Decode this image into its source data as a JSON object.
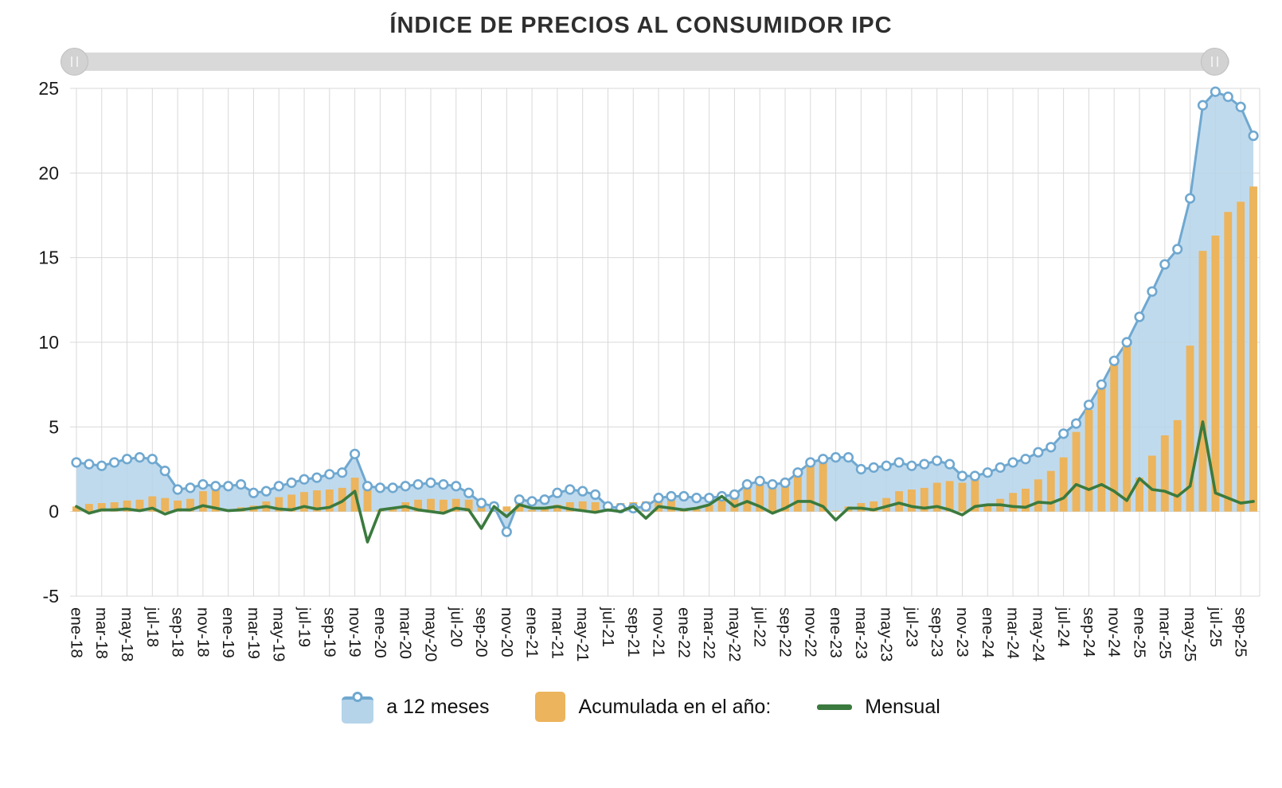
{
  "title": "ÍNDICE DE PRECIOS AL CONSUMIDOR IPC",
  "legend": {
    "series1": "a 12 meses",
    "series2": "Acumulada en el año:",
    "series3": "Mensual"
  },
  "colors": {
    "area_fill": "#b5d4ea",
    "area_stroke": "#6fa8d0",
    "bullet_fill": "#ffffff",
    "bar": "#ecb45c",
    "line": "#3b7a3e",
    "grid": "#d9d9d9",
    "axis_text": "#1a1a1a",
    "scrollbar": "#d9d9d9"
  },
  "chart_data": {
    "type": "mixed",
    "title": "ÍNDICE DE PRECIOS AL CONSUMIDOR IPC",
    "ylim": [
      -5,
      25
    ],
    "yticks": [
      -5,
      0,
      5,
      10,
      15,
      20,
      25
    ],
    "grid": true,
    "legend_position": "bottom",
    "x_label_rotation": 90,
    "x_label_step": 2,
    "x": [
      "ene-18",
      "feb-18",
      "mar-18",
      "abr-18",
      "may-18",
      "jun-18",
      "jul-18",
      "ago-18",
      "sep-18",
      "oct-18",
      "nov-18",
      "dic-18",
      "ene-19",
      "feb-19",
      "mar-19",
      "abr-19",
      "may-19",
      "jun-19",
      "jul-19",
      "ago-19",
      "sep-19",
      "oct-19",
      "nov-19",
      "dic-19",
      "ene-20",
      "feb-20",
      "mar-20",
      "abr-20",
      "may-20",
      "jun-20",
      "jul-20",
      "ago-20",
      "sep-20",
      "oct-20",
      "nov-20",
      "dic-20",
      "ene-21",
      "feb-21",
      "mar-21",
      "abr-21",
      "may-21",
      "jun-21",
      "jul-21",
      "ago-21",
      "sep-21",
      "oct-21",
      "nov-21",
      "dic-21",
      "ene-22",
      "feb-22",
      "mar-22",
      "abr-22",
      "may-22",
      "jun-22",
      "jul-22",
      "ago-22",
      "sep-22",
      "oct-22",
      "nov-22",
      "dic-22",
      "ene-23",
      "feb-23",
      "mar-23",
      "abr-23",
      "may-23",
      "jun-23",
      "jul-23",
      "ago-23",
      "sep-23",
      "oct-23",
      "nov-23",
      "dic-23",
      "ene-24",
      "feb-24",
      "mar-24",
      "abr-24",
      "may-24",
      "jun-24",
      "jul-24",
      "ago-24",
      "sep-24",
      "oct-24",
      "nov-24",
      "dic-24",
      "ene-25",
      "feb-25",
      "mar-25",
      "abr-25",
      "may-25",
      "jun-25",
      "jul-25",
      "ago-25",
      "sep-25",
      "oct-25"
    ],
    "series": [
      {
        "name": "a 12 meses",
        "type": "area",
        "values": [
          2.9,
          2.8,
          2.7,
          2.9,
          3.1,
          3.2,
          3.1,
          2.4,
          1.3,
          1.4,
          1.6,
          1.5,
          1.5,
          1.6,
          1.1,
          1.2,
          1.5,
          1.7,
          1.9,
          2.0,
          2.2,
          2.3,
          3.4,
          1.5,
          1.4,
          1.4,
          1.5,
          1.6,
          1.7,
          1.6,
          1.5,
          1.1,
          0.5,
          0.3,
          -1.2,
          0.7,
          0.6,
          0.7,
          1.1,
          1.3,
          1.2,
          1.0,
          0.3,
          0.2,
          0.2,
          0.3,
          0.8,
          0.9,
          0.9,
          0.8,
          0.8,
          0.9,
          1.0,
          1.6,
          1.8,
          1.6,
          1.7,
          2.3,
          2.9,
          3.1,
          3.2,
          3.2,
          2.5,
          2.6,
          2.7,
          2.9,
          2.7,
          2.8,
          3.0,
          2.8,
          2.1,
          2.1,
          2.3,
          2.6,
          2.9,
          3.1,
          3.5,
          3.8,
          4.6,
          5.2,
          6.3,
          7.5,
          8.9,
          10.0,
          11.5,
          13.0,
          14.6,
          15.5,
          18.5,
          24.0,
          24.8,
          24.5,
          23.9,
          22.2
        ]
      },
      {
        "name": "Acumulada en el año:",
        "type": "bar",
        "values": [
          0.3,
          0.45,
          0.5,
          0.55,
          0.65,
          0.7,
          0.9,
          0.8,
          0.65,
          0.75,
          1.2,
          1.5,
          0.1,
          0.25,
          0.35,
          0.6,
          0.85,
          1.0,
          1.15,
          1.25,
          1.3,
          1.4,
          2.0,
          1.5,
          0.1,
          0.25,
          0.55,
          0.7,
          0.75,
          0.7,
          0.75,
          0.7,
          0.6,
          0.55,
          0.3,
          0.7,
          0.1,
          0.25,
          0.4,
          0.55,
          0.6,
          0.55,
          0.5,
          0.5,
          0.55,
          0.6,
          0.7,
          0.9,
          0.05,
          0.15,
          0.4,
          0.9,
          1.1,
          1.4,
          1.6,
          1.5,
          1.6,
          2.2,
          2.8,
          3.1,
          0.05,
          0.3,
          0.5,
          0.6,
          0.8,
          1.2,
          1.3,
          1.4,
          1.7,
          1.8,
          1.7,
          2.1,
          0.4,
          0.75,
          1.1,
          1.35,
          1.9,
          2.4,
          3.2,
          4.7,
          6.0,
          7.7,
          8.8,
          10.0,
          2.0,
          3.3,
          4.5,
          5.4,
          9.8,
          15.4,
          16.3,
          17.7,
          18.3,
          19.2
        ]
      },
      {
        "name": "Mensual",
        "type": "line",
        "values": [
          0.3,
          -0.1,
          0.1,
          0.1,
          0.15,
          0.05,
          0.2,
          -0.15,
          0.1,
          0.1,
          0.35,
          0.2,
          0.05,
          0.1,
          0.2,
          0.3,
          0.15,
          0.1,
          0.3,
          0.15,
          0.25,
          0.6,
          1.2,
          -1.8,
          0.1,
          0.2,
          0.3,
          0.1,
          0.0,
          -0.1,
          0.2,
          0.1,
          -1.0,
          0.3,
          -0.3,
          0.4,
          0.2,
          0.2,
          0.3,
          0.15,
          0.05,
          -0.05,
          0.1,
          0.0,
          0.3,
          -0.4,
          0.3,
          0.2,
          0.1,
          0.2,
          0.4,
          0.9,
          0.3,
          0.6,
          0.3,
          -0.1,
          0.2,
          0.6,
          0.6,
          0.3,
          -0.5,
          0.2,
          0.2,
          0.1,
          0.3,
          0.5,
          0.3,
          0.2,
          0.3,
          0.1,
          -0.2,
          0.3,
          0.4,
          0.4,
          0.3,
          0.25,
          0.55,
          0.5,
          0.8,
          1.6,
          1.3,
          1.6,
          1.2,
          0.65,
          1.95,
          1.3,
          1.2,
          0.9,
          1.5,
          5.3,
          1.1,
          0.8,
          0.5,
          0.6
        ]
      }
    ]
  }
}
